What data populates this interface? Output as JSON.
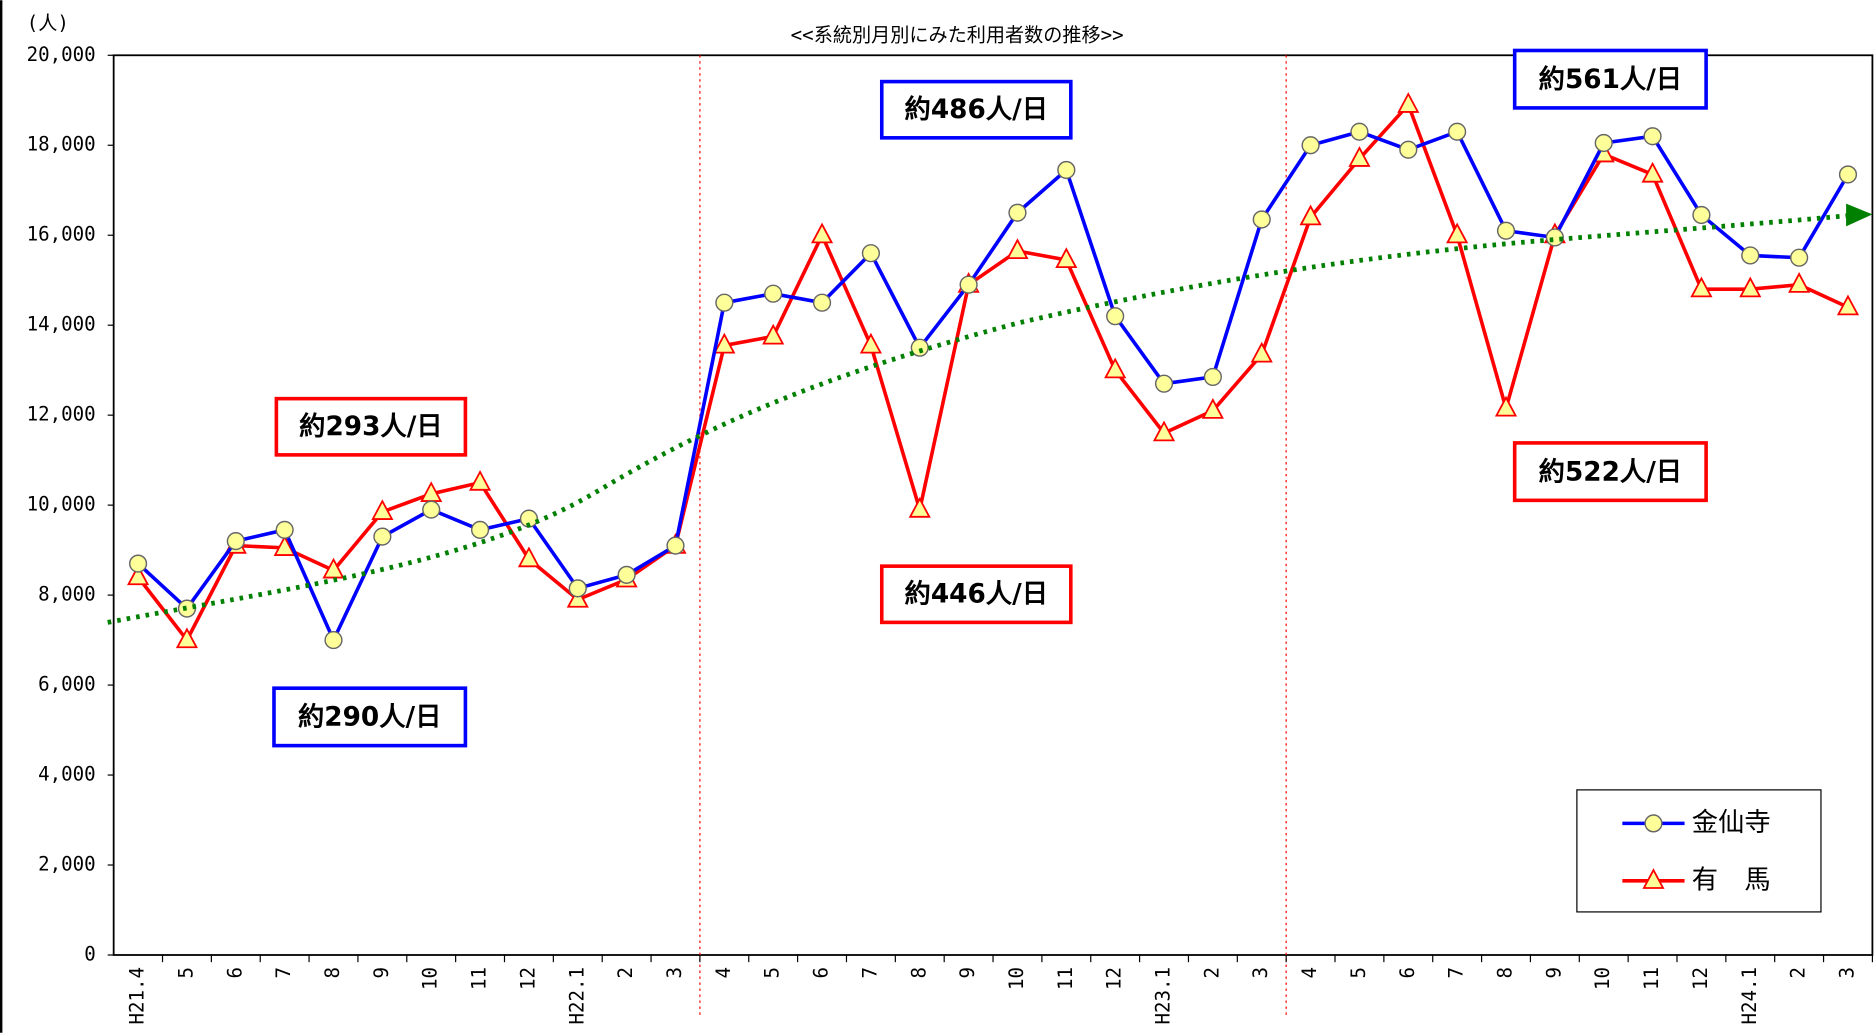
{
  "chart_data": {
    "type": "line",
    "title": "<<系統別月別にみた利用者数の推移>>",
    "y_unit": "(人)",
    "categories": [
      "H21.4",
      "5",
      "6",
      "7",
      "8",
      "9",
      "10",
      "11",
      "12",
      "H22.1",
      "2",
      "3",
      "4",
      "5",
      "6",
      "7",
      "8",
      "9",
      "10",
      "11",
      "12",
      "H23.1",
      "2",
      "3",
      "4",
      "5",
      "6",
      "7",
      "8",
      "9",
      "10",
      "11",
      "12",
      "H24.1",
      "2",
      "3"
    ],
    "series": [
      {
        "name": "金仙寺",
        "color": "#0000ff",
        "marker": "circle",
        "values": [
          8700,
          7700,
          9200,
          9450,
          7000,
          9300,
          9900,
          9450,
          9700,
          8150,
          8450,
          9100,
          14500,
          14700,
          14500,
          15600,
          13500,
          14900,
          16500,
          17450,
          14200,
          12700,
          12850,
          16350,
          18000,
          18300,
          17900,
          18300,
          16100,
          15950,
          18050,
          18200,
          16450,
          15550,
          15500,
          17350
        ]
      },
      {
        "name": "有　馬",
        "color": "#ff0000",
        "marker": "triangle",
        "values": [
          8400,
          7000,
          9100,
          9050,
          8550,
          9850,
          10250,
          10500,
          8800,
          7900,
          8350,
          9100,
          13550,
          13750,
          16000,
          13550,
          9900,
          14900,
          15650,
          15450,
          13000,
          11600,
          12100,
          13350,
          16400,
          17700,
          18900,
          16000,
          12150,
          16000,
          17800,
          17350,
          14800,
          14800,
          14900,
          14400
        ]
      }
    ],
    "ylim": [
      0,
      20000
    ],
    "yticks": [
      0,
      {
        "value": 2000,
        "label": "2,000"
      },
      {
        "value": 4000,
        "label": "4,000"
      },
      {
        "value": 6000,
        "label": "6,000"
      },
      {
        "value": 8000,
        "label": "8,000"
      },
      {
        "value": 10000,
        "label": "10,000"
      },
      {
        "value": 12000,
        "label": "12,000"
      },
      {
        "value": 14000,
        "label": "14,000"
      },
      {
        "value": 16000,
        "label": "16,000"
      },
      {
        "value": 18000,
        "label": "18,000"
      },
      {
        "value": 20000,
        "label": "20,000"
      }
    ],
    "marker_fill": "#ffff99",
    "legend": "bottom-right",
    "annotations": [
      {
        "text": "約293人/日",
        "color": "#ff0000"
      },
      {
        "text": "約290人/日",
        "color": "#0000ff"
      },
      {
        "text": "約486人/日",
        "color": "#0000ff"
      },
      {
        "text": "約446人/日",
        "color": "#ff0000"
      },
      {
        "text": "約561人/日",
        "color": "#0000ff"
      },
      {
        "text": "約522人/日",
        "color": "#ff0000"
      }
    ]
  }
}
